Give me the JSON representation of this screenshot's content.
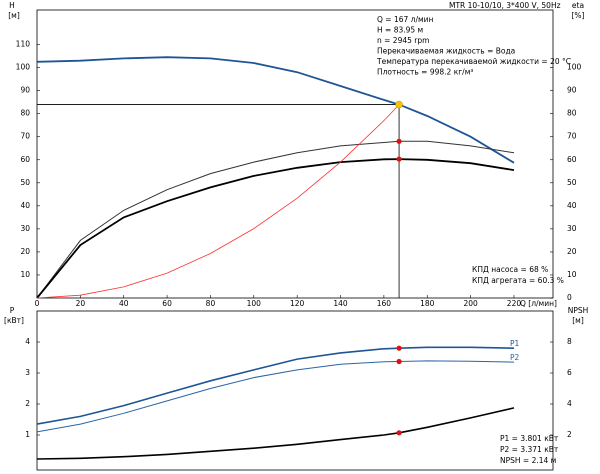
{
  "chart_data": [
    {
      "type": "line",
      "header": "MTR 10-10/10, 3*400 V, 50Hz",
      "y_label": "H",
      "y_unit": "[м]",
      "y2_label": "eta",
      "y2_unit": "[%]",
      "x_label": "Q [л/мин]",
      "info": [
        "Q = 167 л/мин",
        "H = 83.95 м",
        "n = 2945 rpm",
        "Перекачиваемая жидкость = Вода",
        "Температура перекачиваемой жидкости = 20 °C",
        "Плотность = 998.2 кг/м³"
      ],
      "notes": [
        "КПД насоса = 68 %",
        "КПД агрегата = 60.3 %"
      ],
      "x": [
        0,
        20,
        40,
        60,
        80,
        100,
        120,
        140,
        160,
        167,
        180,
        200,
        220
      ],
      "xlim": [
        0,
        238
      ],
      "xticks": [
        0,
        20,
        40,
        60,
        80,
        100,
        120,
        140,
        160,
        180,
        200,
        220
      ],
      "ylim": [
        0,
        125
      ],
      "yticks": [
        10,
        20,
        30,
        40,
        50,
        60,
        70,
        80,
        90,
        100,
        110
      ],
      "y2lim": [
        0,
        125
      ],
      "y2ticks": [
        0,
        10,
        20,
        30,
        40,
        50,
        60,
        70,
        80,
        90,
        100
      ],
      "series": [
        {
          "color": "#1f5596",
          "width": 1.8,
          "values": [
            102.5,
            103,
            104,
            104.5,
            104,
            102,
            98,
            92,
            86,
            83.95,
            79,
            70,
            58.7
          ]
        },
        {
          "color": "#333333",
          "width": 1,
          "axis": "y2",
          "values": [
            0,
            25,
            38,
            47,
            54,
            59,
            63,
            66,
            67.5,
            68,
            68,
            66,
            63
          ]
        },
        {
          "color": "#000000",
          "width": 1.8,
          "axis": "y2",
          "values": [
            0,
            23,
            35,
            42,
            48,
            53,
            56.5,
            59,
            60.2,
            60.3,
            60,
            58.5,
            55.5
          ]
        },
        {
          "color": "#ff3030",
          "width": 0.8,
          "values": [
            0,
            1.2,
            4.8,
            10.8,
            19.3,
            30.1,
            43.3,
            59,
            77,
            83.95,
            null,
            null,
            null
          ]
        }
      ],
      "operating_point": {
        "x": 167,
        "y": 83.95,
        "color": "#f5c400"
      },
      "points": [
        {
          "x": 167,
          "y": 68,
          "axis": "y2",
          "color": "#e01010"
        },
        {
          "x": 167,
          "y": 60.3,
          "axis": "y2",
          "color": "#e01010"
        }
      ]
    },
    {
      "type": "line",
      "y_label": "P",
      "y_unit": "[кВт]",
      "y2_label": "NPSH",
      "y2_unit": "[м]",
      "notes": [
        "P1 = 3.801 кВт",
        "P2 = 3.371 кВт",
        "NPSH = 2.14 м"
      ],
      "x": [
        0,
        20,
        40,
        60,
        80,
        100,
        120,
        140,
        160,
        167,
        180,
        200,
        220
      ],
      "xlim": [
        0,
        238
      ],
      "ylim": [
        0,
        5
      ],
      "yticks": [
        1,
        2,
        3,
        4
      ],
      "y2lim": [
        0,
        10
      ],
      "y2ticks": [
        2,
        4,
        6,
        8
      ],
      "series": [
        {
          "name": "P1",
          "color": "#1f5596",
          "width": 1.6,
          "values": [
            1.35,
            1.6,
            1.95,
            2.35,
            2.75,
            3.1,
            3.45,
            3.65,
            3.78,
            3.801,
            3.83,
            3.83,
            3.8
          ]
        },
        {
          "name": "P2",
          "color": "#2a64a8",
          "width": 1,
          "values": [
            1.1,
            1.35,
            1.7,
            2.1,
            2.5,
            2.85,
            3.1,
            3.28,
            3.36,
            3.371,
            3.39,
            3.38,
            3.35
          ]
        },
        {
          "color": "#000000",
          "width": 1.6,
          "axis": "y2",
          "values": [
            0.45,
            0.5,
            0.6,
            0.75,
            0.95,
            1.15,
            1.4,
            1.7,
            2.0,
            2.14,
            2.5,
            3.1,
            3.75
          ]
        }
      ],
      "points": [
        {
          "x": 167,
          "y": 3.801,
          "color": "#e01010"
        },
        {
          "x": 167,
          "y": 3.371,
          "color": "#e01010"
        },
        {
          "x": 167,
          "y": 2.14,
          "axis": "y2",
          "color": "#e01010"
        }
      ]
    }
  ]
}
